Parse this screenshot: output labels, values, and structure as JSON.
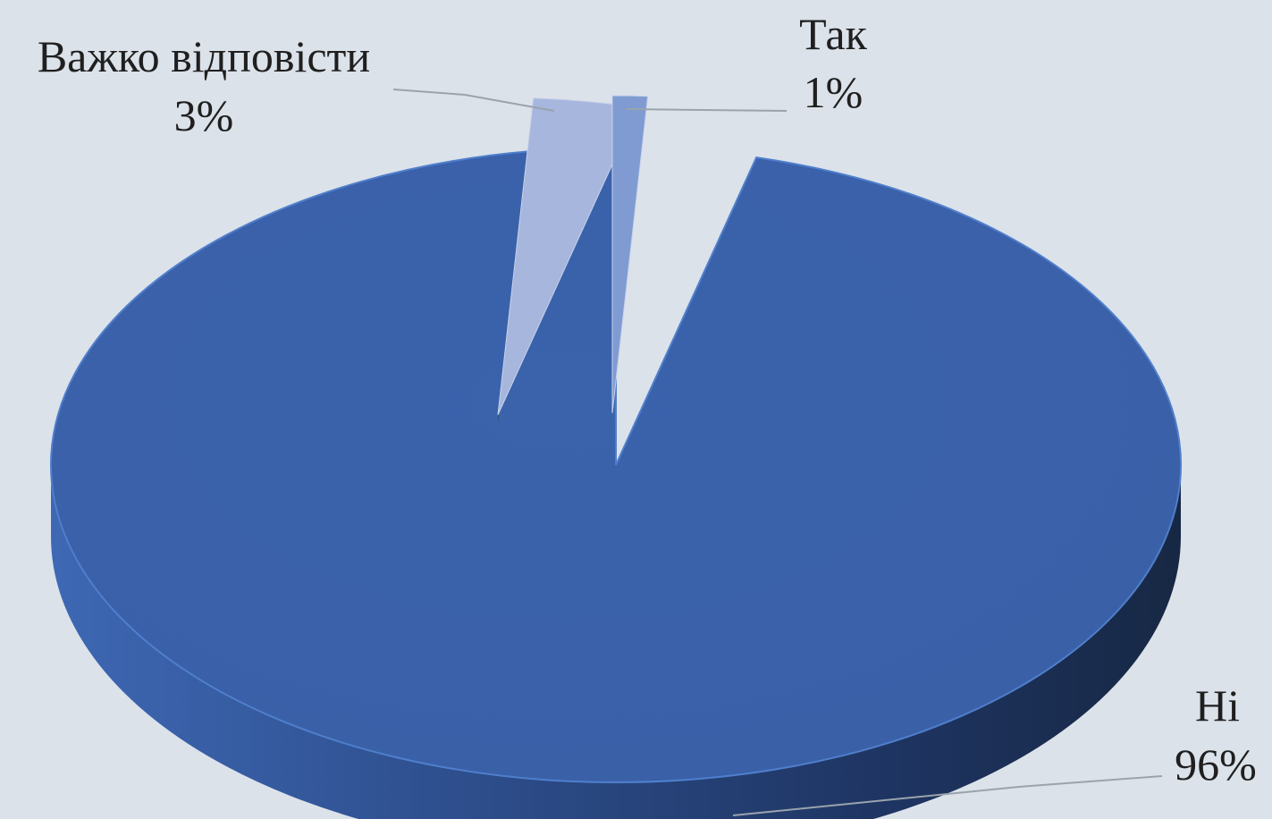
{
  "chart_data": {
    "type": "pie",
    "style": "3d-exploded",
    "categories": [
      "Так",
      "Важко відповісти",
      "Ні"
    ],
    "values": [
      1,
      3,
      96
    ],
    "value_labels": [
      "1%",
      "3%",
      "96%"
    ],
    "colors": [
      "#7f9bd2",
      "#a6b6dd",
      "#3a62ab"
    ],
    "legend": "none",
    "background": "#dce2ea"
  }
}
